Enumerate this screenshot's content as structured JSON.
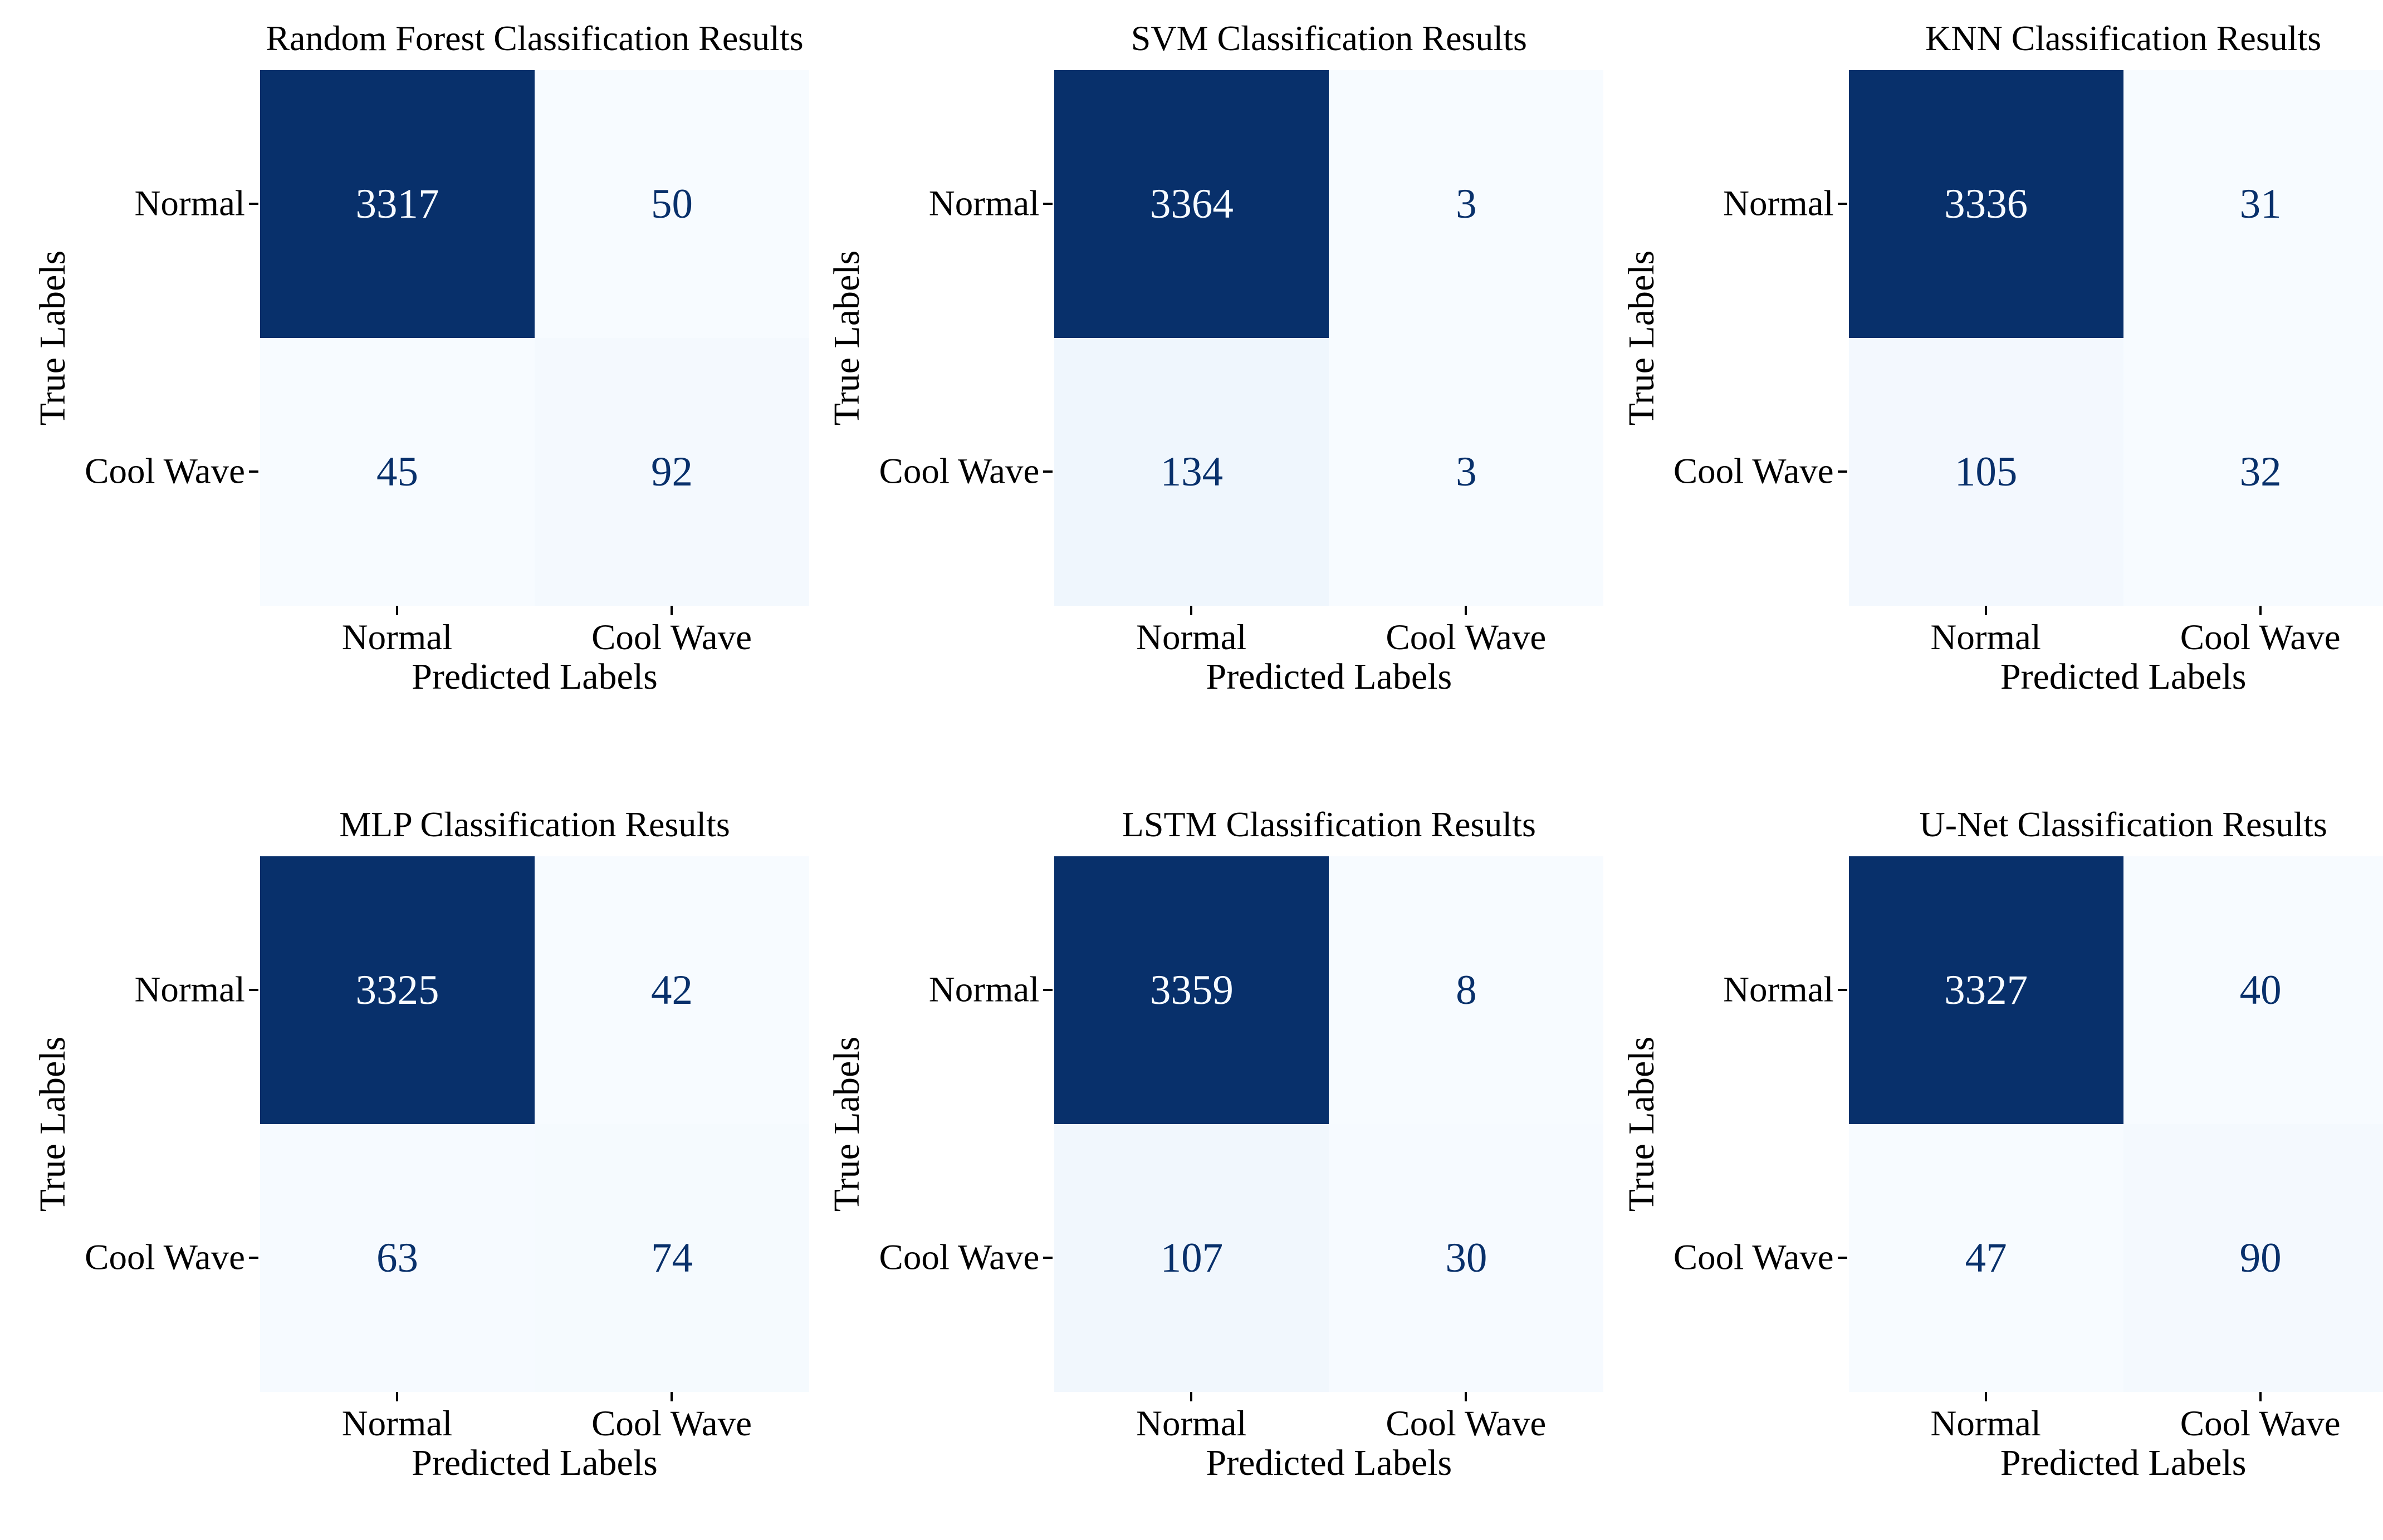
{
  "figure": {
    "background": "#ffffff"
  },
  "chart_data": {
    "type": "heatmap",
    "subtype": "confusion-matrix-grid",
    "layout": "2 rows x 3 columns",
    "colormap": "Blues",
    "colors": {
      "cmap_low": "#f7fbff",
      "cmap_high": "#08306b",
      "annot_on_dark": "#f7fbff",
      "annot_on_light": "#08306b",
      "tick_color": "#000000",
      "text_color": "#000000"
    },
    "axis": {
      "xlabel": "Predicted Labels",
      "ylabel": "True Labels",
      "classes": [
        "Normal",
        "Cool Wave"
      ]
    },
    "matrices": [
      {
        "title": "Random Forest Classification Results",
        "values": [
          [
            3317,
            50
          ],
          [
            45,
            92
          ]
        ]
      },
      {
        "title": "SVM Classification Results",
        "values": [
          [
            3364,
            3
          ],
          [
            134,
            3
          ]
        ]
      },
      {
        "title": "KNN Classification Results",
        "values": [
          [
            3336,
            31
          ],
          [
            105,
            32
          ]
        ]
      },
      {
        "title": "MLP Classification Results",
        "values": [
          [
            3325,
            42
          ],
          [
            63,
            74
          ]
        ]
      },
      {
        "title": "LSTM Classification Results",
        "values": [
          [
            3359,
            8
          ],
          [
            107,
            30
          ]
        ]
      },
      {
        "title": "U-Net Classification Results",
        "values": [
          [
            3327,
            40
          ],
          [
            47,
            90
          ]
        ]
      }
    ]
  }
}
